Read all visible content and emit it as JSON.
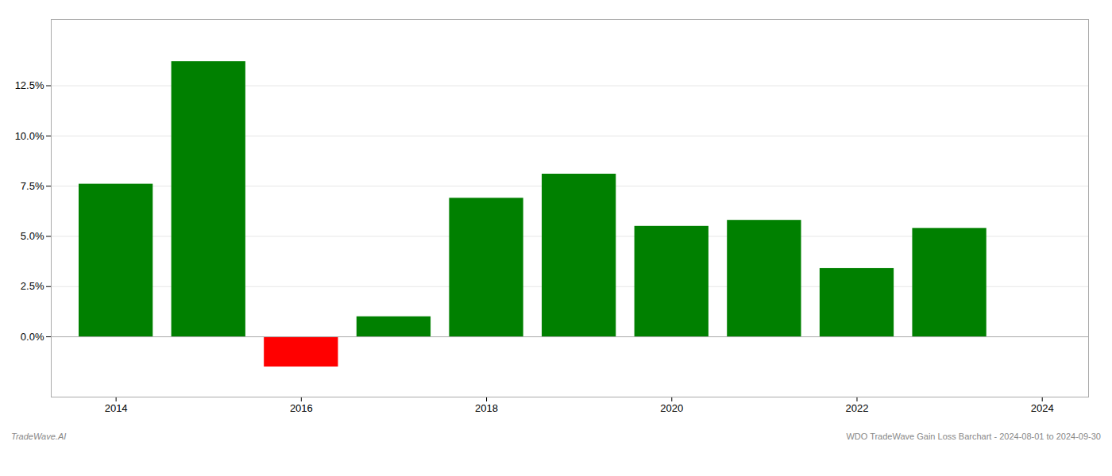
{
  "chart_data": {
    "type": "bar",
    "title": "WDO TradeWave Gain Loss Barchart - 2024-08-01 to 2024-09-30",
    "annotations": [
      "TradeWave.AI"
    ],
    "x": [
      2014,
      2015,
      2016,
      2017,
      2018,
      2019,
      2020,
      2021,
      2022,
      2023
    ],
    "values": [
      0.076,
      0.137,
      -0.015,
      0.01,
      0.069,
      0.081,
      0.055,
      0.058,
      0.034,
      0.054
    ],
    "colors": [
      "#008000",
      "#008000",
      "#ff0000",
      "#008000",
      "#008000",
      "#008000",
      "#008000",
      "#008000",
      "#008000",
      "#008000"
    ],
    "xlim": [
      2013.3,
      2024.5
    ],
    "xticks": [
      2014,
      2016,
      2018,
      2020,
      2022,
      2024
    ],
    "ylim": [
      -0.03,
      0.158
    ],
    "yticks": [
      {
        "value": 0.0,
        "label": "0.0%"
      },
      {
        "value": 0.025,
        "label": "2.5%"
      },
      {
        "value": 0.05,
        "label": "5.0%"
      },
      {
        "value": 0.075,
        "label": "7.5%"
      },
      {
        "value": 0.1,
        "label": "10.0%"
      },
      {
        "value": 0.125,
        "label": "12.5%"
      }
    ],
    "grid": true
  }
}
